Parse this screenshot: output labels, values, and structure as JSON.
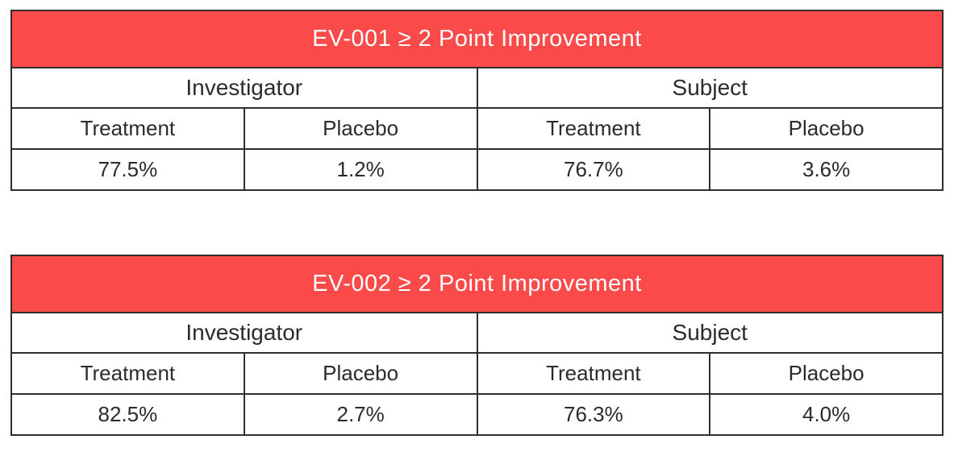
{
  "page": {
    "background": "#ffffff"
  },
  "colors": {
    "title_bar_bg": "#fa4a4a",
    "title_bar_text": "#ffffff",
    "border": "#2e2e2e",
    "body_text": "#2b2b2b"
  },
  "tables": [
    {
      "title": "EV-001 ≥ 2 Point Improvement",
      "groups": [
        "Investigator",
        "Subject"
      ],
      "columns": [
        "Treatment",
        "Placebo",
        "Treatment",
        "Placebo"
      ],
      "values": [
        "77.5%",
        "1.2%",
        "76.7%",
        "3.6%"
      ]
    },
    {
      "title": "EV-002 ≥ 2 Point Improvement",
      "groups": [
        "Investigator",
        "Subject"
      ],
      "columns": [
        "Treatment",
        "Placebo",
        "Treatment",
        "Placebo"
      ],
      "values": [
        "82.5%",
        "2.7%",
        "76.3%",
        "4.0%"
      ]
    }
  ],
  "chart_data": [
    {
      "type": "table",
      "title": "EV-001 ≥ 2 Point Improvement",
      "column_groups": [
        "Investigator",
        "Subject"
      ],
      "columns": [
        "Investigator Treatment",
        "Investigator Placebo",
        "Subject Treatment",
        "Subject Placebo"
      ],
      "values_pct": [
        77.5,
        1.2,
        76.7,
        3.6
      ]
    },
    {
      "type": "table",
      "title": "EV-002 ≥ 2 Point Improvement",
      "column_groups": [
        "Investigator",
        "Subject"
      ],
      "columns": [
        "Investigator Treatment",
        "Investigator Placebo",
        "Subject Treatment",
        "Subject Placebo"
      ],
      "values_pct": [
        82.5,
        2.7,
        76.3,
        4.0
      ]
    }
  ]
}
